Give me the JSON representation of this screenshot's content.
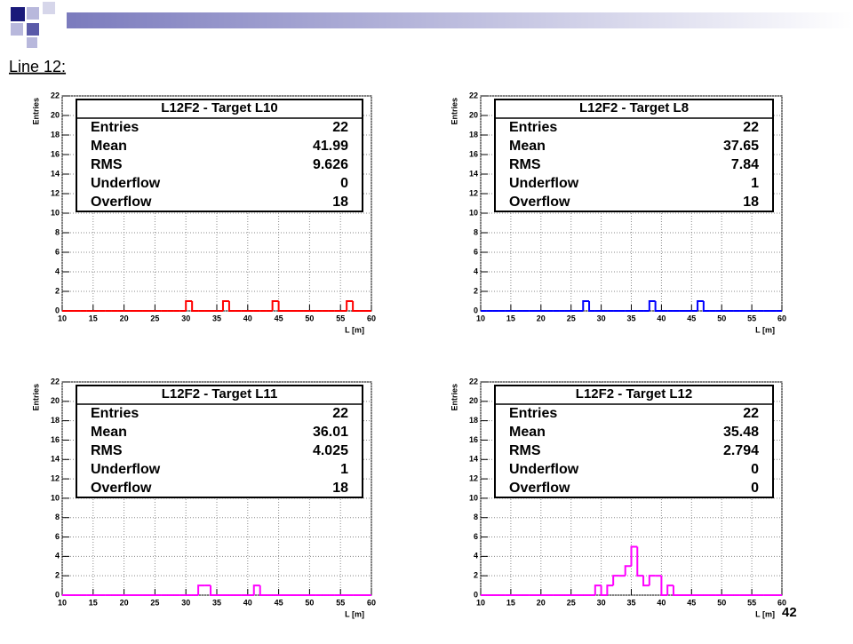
{
  "heading": "Line 12:",
  "page_number": "42",
  "chart_data": [
    {
      "type": "histogram",
      "color": "#ff0000",
      "bins": [
        10,
        11,
        12,
        13,
        14,
        15,
        16,
        17,
        18,
        19,
        20,
        21,
        22,
        23,
        24,
        25,
        26,
        27,
        28,
        29,
        30,
        31,
        32,
        33,
        34,
        35,
        36,
        37,
        38,
        39,
        40,
        41,
        42,
        43,
        44,
        45,
        46,
        47,
        48,
        49,
        50,
        51,
        52,
        53,
        54,
        55,
        56,
        57,
        58,
        59,
        60
      ],
      "counts": [
        0,
        0,
        0,
        0,
        0,
        0,
        0,
        0,
        0,
        0,
        0,
        0,
        0,
        0,
        0,
        0,
        0,
        0,
        0,
        0,
        1,
        0,
        0,
        0,
        0,
        0,
        1,
        0,
        0,
        0,
        0,
        0,
        0,
        0,
        1,
        0,
        0,
        0,
        0,
        0,
        0,
        0,
        0,
        0,
        0,
        0,
        1,
        0,
        0,
        0
      ],
      "xlim": [
        10,
        60
      ],
      "ylim": [
        0,
        22
      ],
      "xticks": [
        10,
        15,
        20,
        25,
        30,
        35,
        40,
        45,
        50,
        55,
        60
      ],
      "yticks": [
        0,
        2,
        4,
        6,
        8,
        10,
        12,
        14,
        16,
        18,
        20,
        22
      ],
      "grid": true,
      "x_label": "L [m]",
      "y_label": "Entries",
      "stats": {
        "title": "L12F2 - Target L10",
        "rows": [
          [
            "Entries",
            "22"
          ],
          [
            "Mean",
            "41.99"
          ],
          [
            "RMS",
            "9.626"
          ],
          [
            "Underflow",
            "0"
          ],
          [
            "Overflow",
            "18"
          ]
        ]
      }
    },
    {
      "type": "histogram",
      "color": "#0000ff",
      "bins": [
        10,
        11,
        12,
        13,
        14,
        15,
        16,
        17,
        18,
        19,
        20,
        21,
        22,
        23,
        24,
        25,
        26,
        27,
        28,
        29,
        30,
        31,
        32,
        33,
        34,
        35,
        36,
        37,
        38,
        39,
        40,
        41,
        42,
        43,
        44,
        45,
        46,
        47,
        48,
        49,
        50,
        51,
        52,
        53,
        54,
        55,
        56,
        57,
        58,
        59,
        60
      ],
      "counts": [
        0,
        0,
        0,
        0,
        0,
        0,
        0,
        0,
        0,
        0,
        0,
        0,
        0,
        0,
        0,
        0,
        0,
        1,
        0,
        0,
        0,
        0,
        0,
        0,
        0,
        0,
        0,
        0,
        1,
        0,
        0,
        0,
        0,
        0,
        0,
        0,
        1,
        0,
        0,
        0,
        0,
        0,
        0,
        0,
        0,
        0,
        0,
        0,
        0,
        0
      ],
      "xlim": [
        10,
        60
      ],
      "ylim": [
        0,
        22
      ],
      "xticks": [
        10,
        15,
        20,
        25,
        30,
        35,
        40,
        45,
        50,
        55,
        60
      ],
      "yticks": [
        0,
        2,
        4,
        6,
        8,
        10,
        12,
        14,
        16,
        18,
        20,
        22
      ],
      "grid": true,
      "x_label": "L [m]",
      "y_label": "Entries",
      "stats": {
        "title": "L12F2 - Target L8",
        "rows": [
          [
            "Entries",
            "22"
          ],
          [
            "Mean",
            "37.65"
          ],
          [
            "RMS",
            "7.84"
          ],
          [
            "Underflow",
            "1"
          ],
          [
            "Overflow",
            "18"
          ]
        ]
      }
    },
    {
      "type": "histogram",
      "color": "#ff00ff",
      "bins": [
        10,
        11,
        12,
        13,
        14,
        15,
        16,
        17,
        18,
        19,
        20,
        21,
        22,
        23,
        24,
        25,
        26,
        27,
        28,
        29,
        30,
        31,
        32,
        33,
        34,
        35,
        36,
        37,
        38,
        39,
        40,
        41,
        42,
        43,
        44,
        45,
        46,
        47,
        48,
        49,
        50,
        51,
        52,
        53,
        54,
        55,
        56,
        57,
        58,
        59,
        60
      ],
      "counts": [
        0,
        0,
        0,
        0,
        0,
        0,
        0,
        0,
        0,
        0,
        0,
        0,
        0,
        0,
        0,
        0,
        0,
        0,
        0,
        0,
        0,
        0,
        1,
        1,
        0,
        0,
        0,
        0,
        0,
        0,
        0,
        1,
        0,
        0,
        0,
        0,
        0,
        0,
        0,
        0,
        0,
        0,
        0,
        0,
        0,
        0,
        0,
        0,
        0,
        0
      ],
      "xlim": [
        10,
        60
      ],
      "ylim": [
        0,
        22
      ],
      "xticks": [
        10,
        15,
        20,
        25,
        30,
        35,
        40,
        45,
        50,
        55,
        60
      ],
      "yticks": [
        0,
        2,
        4,
        6,
        8,
        10,
        12,
        14,
        16,
        18,
        20,
        22
      ],
      "grid": true,
      "x_label": "L [m]",
      "y_label": "Entries",
      "stats": {
        "title": "L12F2 - Target L11",
        "rows": [
          [
            "Entries",
            "22"
          ],
          [
            "Mean",
            "36.01"
          ],
          [
            "RMS",
            "4.025"
          ],
          [
            "Underflow",
            "1"
          ],
          [
            "Overflow",
            "18"
          ]
        ]
      }
    },
    {
      "type": "histogram",
      "color": "#ff00ff",
      "bins": [
        10,
        11,
        12,
        13,
        14,
        15,
        16,
        17,
        18,
        19,
        20,
        21,
        22,
        23,
        24,
        25,
        26,
        27,
        28,
        29,
        30,
        31,
        32,
        33,
        34,
        35,
        36,
        37,
        38,
        39,
        40,
        41,
        42,
        43,
        44,
        45,
        46,
        47,
        48,
        49,
        50,
        51,
        52,
        53,
        54,
        55,
        56,
        57,
        58,
        59,
        60
      ],
      "counts": [
        0,
        0,
        0,
        0,
        0,
        0,
        0,
        0,
        0,
        0,
        0,
        0,
        0,
        0,
        0,
        0,
        0,
        0,
        0,
        1,
        0,
        1,
        2,
        2,
        3,
        5,
        2,
        1,
        2,
        2,
        0,
        1,
        0,
        0,
        0,
        0,
        0,
        0,
        0,
        0,
        0,
        0,
        0,
        0,
        0,
        0,
        0,
        0,
        0,
        0
      ],
      "xlim": [
        10,
        60
      ],
      "ylim": [
        0,
        22
      ],
      "xticks": [
        10,
        15,
        20,
        25,
        30,
        35,
        40,
        45,
        50,
        55,
        60
      ],
      "yticks": [
        0,
        2,
        4,
        6,
        8,
        10,
        12,
        14,
        16,
        18,
        20,
        22
      ],
      "grid": true,
      "x_label": "L [m]",
      "y_label": "Entries",
      "stats": {
        "title": "L12F2 - Target L12",
        "rows": [
          [
            "Entries",
            "22"
          ],
          [
            "Mean",
            "35.48"
          ],
          [
            "RMS",
            "2.794"
          ],
          [
            "Underflow",
            "0"
          ],
          [
            "Overflow",
            "0"
          ]
        ]
      }
    }
  ]
}
